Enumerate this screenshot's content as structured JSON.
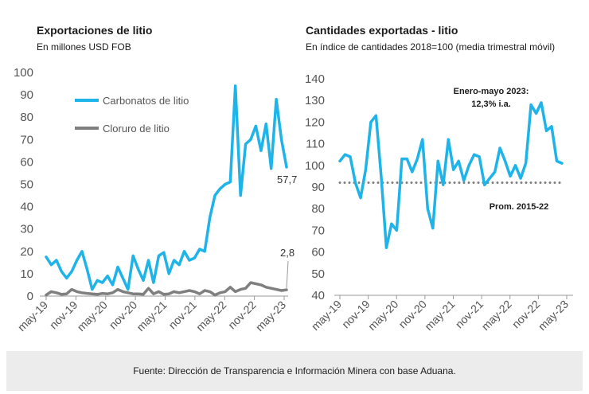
{
  "footer": "Fuente: Dirección de Transparencia e Información Minera con base Aduana.",
  "colors": {
    "blue": "#1EB4E9",
    "gray": "#7F7F7F",
    "avg": "#7F7F7F"
  },
  "chart_data": [
    {
      "type": "line",
      "title": "Exportaciones de litio",
      "subtitle": "En millones USD FOB",
      "ylim": [
        0,
        100
      ],
      "yticks": [
        0,
        10,
        20,
        30,
        40,
        50,
        60,
        70,
        80,
        90,
        100
      ],
      "xticks": [
        "may-19",
        "nov-19",
        "may-20",
        "nov-20",
        "may-21",
        "nov-21",
        "may-22",
        "nov-22",
        "may-23"
      ],
      "legend_position": "top-left",
      "series": [
        {
          "name": "Carbonatos de litio",
          "color": "#1EB4E9",
          "end_label": "57,7",
          "values": [
            17.5,
            14,
            16,
            11,
            8,
            11,
            16,
            20,
            12,
            3,
            7,
            6,
            9,
            5,
            13,
            8,
            3,
            18,
            12,
            7,
            16,
            6,
            18,
            19.5,
            10,
            16,
            14,
            20,
            16,
            17,
            21,
            20,
            35,
            45,
            48,
            50,
            51,
            94,
            45,
            68,
            70,
            76,
            65,
            77,
            57,
            88,
            70,
            57.7
          ]
        },
        {
          "name": "Cloruro de litio",
          "color": "#7F7F7F",
          "end_label": "2,8",
          "values": [
            0.5,
            2,
            1.5,
            0.8,
            1,
            3,
            2,
            1.5,
            1.2,
            1,
            0.8,
            1.2,
            1,
            1.5,
            3,
            2,
            1.5,
            1,
            1,
            0.8,
            3.5,
            1,
            2,
            0.8,
            1,
            2,
            1.5,
            2,
            2.5,
            2,
            1,
            2.5,
            2,
            0.5,
            1.5,
            2,
            4,
            2,
            3,
            3.5,
            6,
            5.5,
            5,
            4,
            3.5,
            3,
            2.5,
            2.8
          ]
        }
      ]
    },
    {
      "type": "line",
      "title": "Cantidades exportadas - litio",
      "subtitle": "En índice de cantidades 2018=100 (media trimestral móvil)",
      "ylim": [
        40,
        140
      ],
      "yticks": [
        40,
        50,
        60,
        70,
        80,
        90,
        100,
        110,
        120,
        130,
        140
      ],
      "xticks": [
        "may-19",
        "nov-19",
        "may-20",
        "nov-20",
        "may-21",
        "nov-21",
        "may-22",
        "nov-22",
        "may-23"
      ],
      "annotation": {
        "line1": "Enero-mayo 2023:",
        "line2": "12,3% i.a."
      },
      "average": {
        "label": "Prom. 2015-22",
        "value": 92
      },
      "series": [
        {
          "name": "",
          "color": "#1EB4E9",
          "values": [
            102,
            105,
            104,
            92,
            85,
            98,
            120,
            123,
            95,
            62,
            73,
            70,
            103,
            103,
            97,
            103,
            112,
            80,
            71,
            102,
            91,
            112,
            98,
            102,
            93,
            100,
            105,
            104,
            91,
            94,
            97,
            108,
            102,
            95,
            100,
            94,
            101,
            128,
            124,
            129,
            116,
            118,
            102,
            101
          ]
        }
      ]
    }
  ]
}
